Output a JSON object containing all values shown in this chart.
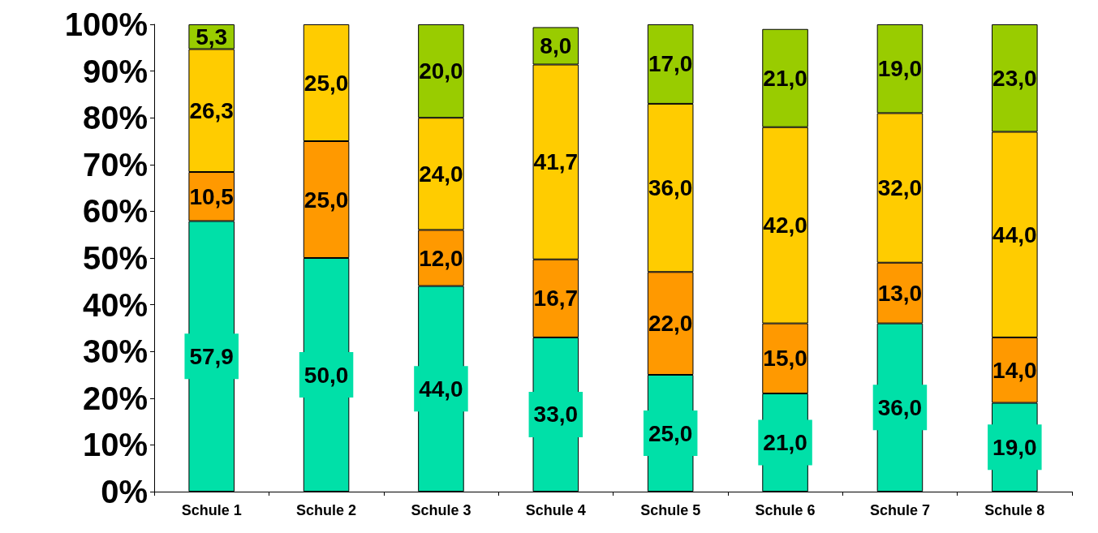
{
  "chart_data": {
    "type": "bar",
    "stacked": true,
    "categories": [
      "Schule 1",
      "Schule 2",
      "Schule 3",
      "Schule 4",
      "Schule 5",
      "Schule 6",
      "Schule 7",
      "Schule 8"
    ],
    "series": [
      {
        "color": "#00e0a8",
        "values": [
          57.9,
          50.0,
          44.0,
          33.0,
          25.0,
          21.0,
          36.0,
          19.0
        ],
        "value_labels": [
          "57,9",
          "50,0",
          "44,0",
          "33,0",
          "25,0",
          "21,0",
          "36,0",
          "19,0"
        ]
      },
      {
        "color": "#ff9900",
        "values": [
          10.5,
          25.0,
          12.0,
          16.7,
          22.0,
          15.0,
          13.0,
          14.0
        ],
        "value_labels": [
          "10,5",
          "25,0",
          "12,0",
          "16,7",
          "22,0",
          "15,0",
          "13,0",
          "14,0"
        ]
      },
      {
        "color": "#ffcc00",
        "values": [
          26.3,
          25.0,
          24.0,
          41.7,
          36.0,
          42.0,
          32.0,
          44.0
        ],
        "value_labels": [
          "26,3",
          "25,0",
          "24,0",
          "41,7",
          "36,0",
          "42,0",
          "32,0",
          "44,0"
        ]
      },
      {
        "color": "#99cc00",
        "values": [
          5.3,
          null,
          20.0,
          8.0,
          17.0,
          21.0,
          19.0,
          23.0
        ],
        "value_labels": [
          "5,3",
          null,
          "20,0",
          "8,0",
          "17,0",
          "21,0",
          "19,0",
          "23,0"
        ]
      }
    ],
    "ylim": [
      0,
      100
    ],
    "yticks": [
      {
        "value": 0,
        "label": "0%"
      },
      {
        "value": 10,
        "label": "10%"
      },
      {
        "value": 20,
        "label": "20%"
      },
      {
        "value": 30,
        "label": "30%"
      },
      {
        "value": 40,
        "label": "40%"
      },
      {
        "value": 50,
        "label": "50%"
      },
      {
        "value": 60,
        "label": "60%"
      },
      {
        "value": 70,
        "label": "70%"
      },
      {
        "value": 80,
        "label": "80%"
      },
      {
        "value": 90,
        "label": "90%"
      },
      {
        "value": 100,
        "label": "100%"
      }
    ],
    "grid": false
  }
}
